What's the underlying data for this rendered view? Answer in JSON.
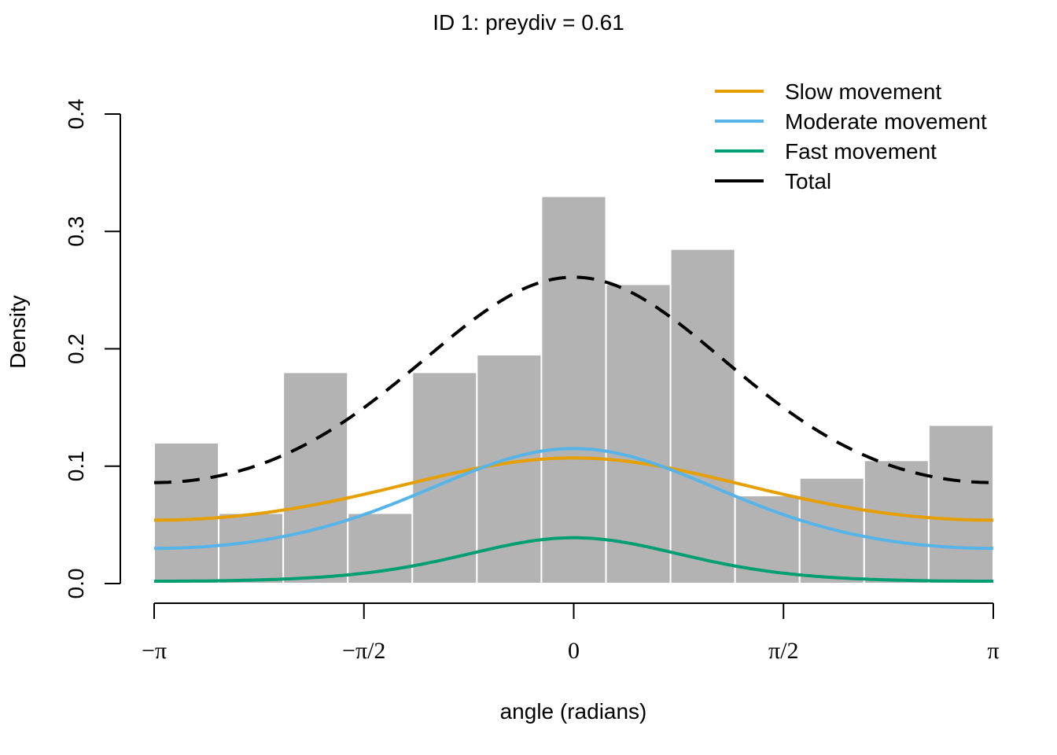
{
  "chart_data": {
    "type": "histogram",
    "title": "ID 1: preydiv = 0.61",
    "xlabel": "angle (radians)",
    "ylabel": "Density",
    "xlim": [
      -3.14159,
      3.14159
    ],
    "ylim": [
      0,
      0.4
    ],
    "yticks": [
      0.0,
      0.1,
      0.2,
      0.3,
      0.4
    ],
    "ytick_labels": [
      "0.0",
      "0.1",
      "0.2",
      "0.3",
      "0.4"
    ],
    "xticks": [
      -3.14159,
      -1.5708,
      0,
      1.5708,
      3.14159
    ],
    "xtick_labels": [
      "−π",
      "−π/2",
      "0",
      "π/2",
      "π"
    ],
    "bin_width": 0.4833,
    "bins_left": [
      -3.14159,
      -2.65829,
      -2.17499,
      -1.69169,
      -1.20839,
      -0.72509,
      -0.24179,
      0.24151,
      0.72481,
      1.20811,
      1.69141,
      2.17471,
      2.65801
    ],
    "bar_values": [
      0.12,
      0.06,
      0.18,
      0.06,
      0.18,
      0.195,
      0.33,
      0.255,
      0.285,
      0.075,
      0.09,
      0.105,
      0.135
    ],
    "bar_color": "#b3b3b3",
    "series": [
      {
        "name": "Slow movement",
        "color": "#E69F00",
        "dash": false,
        "type": "von_mises",
        "weight_peak": 0.107,
        "at_pi": 0.054
      },
      {
        "name": "Moderate movement",
        "color": "#56B4E9",
        "dash": false,
        "type": "von_mises",
        "weight_peak": 0.115,
        "at_pi": 0.03
      },
      {
        "name": "Fast movement",
        "color": "#009E73",
        "dash": false,
        "type": "von_mises",
        "weight_peak": 0.039,
        "at_pi": 0.002
      },
      {
        "name": "Total",
        "color": "#000000",
        "dash": true,
        "type": "sum",
        "weight_peak": 0.261,
        "at_pi": 0.086
      }
    ],
    "legend_position": "top-right"
  }
}
